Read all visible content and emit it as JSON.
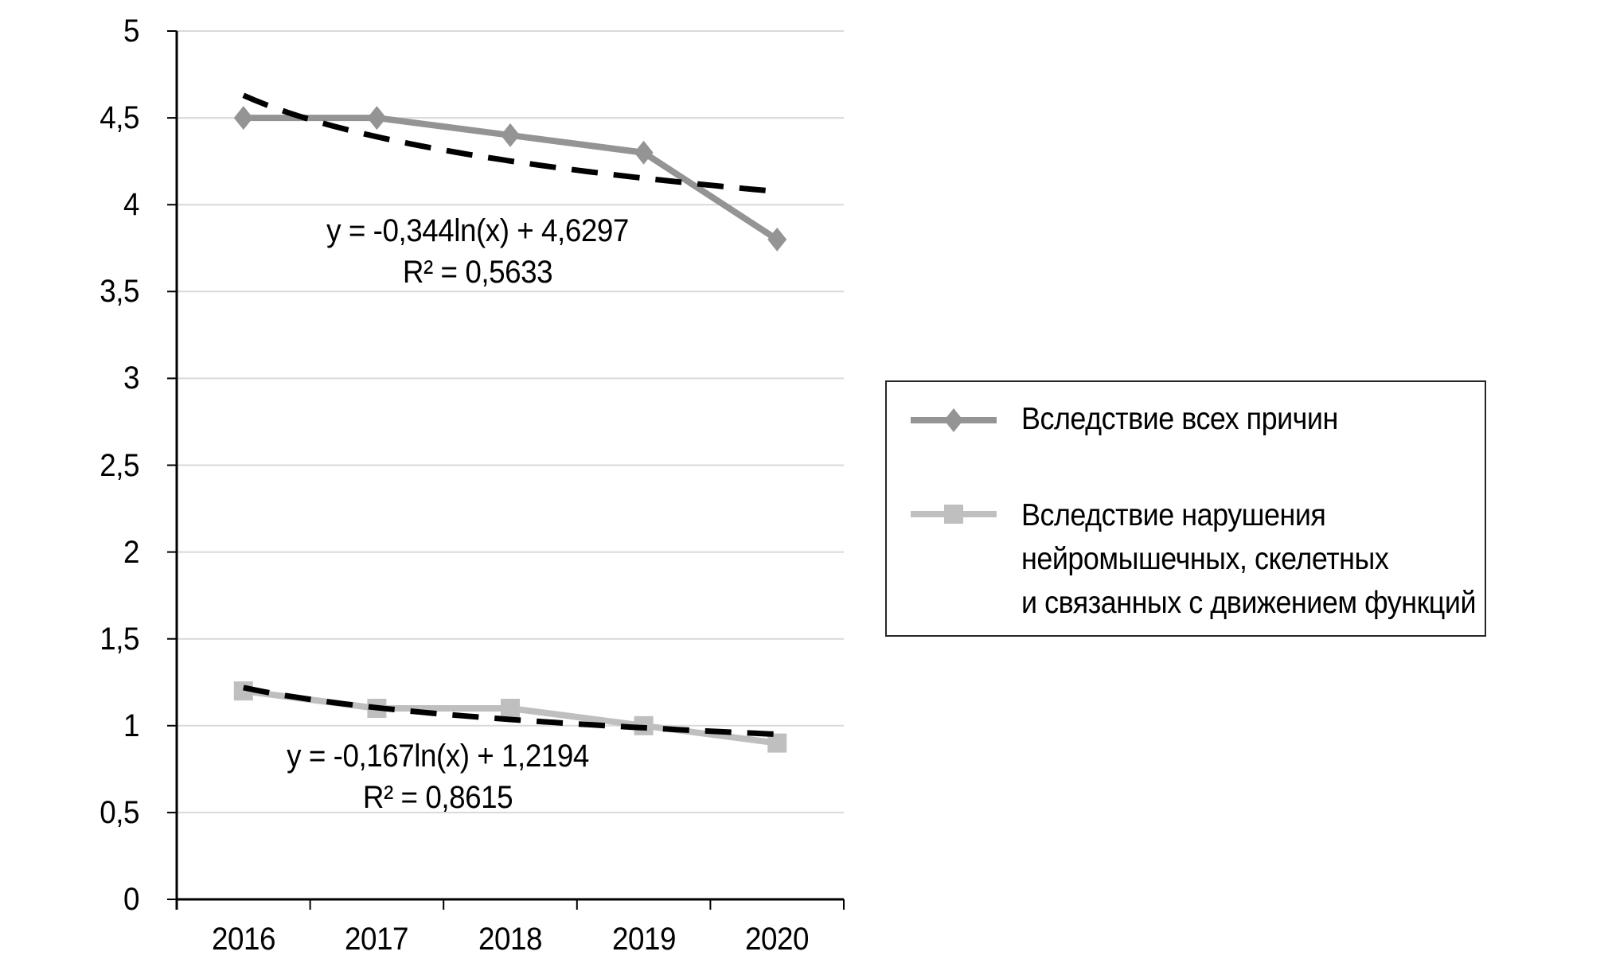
{
  "chart_data": {
    "type": "line",
    "categories": [
      "2016",
      "2017",
      "2018",
      "2019",
      "2020"
    ],
    "series": [
      {
        "name": "Вследствие всех причин",
        "values": [
          4.5,
          4.5,
          4.4,
          4.3,
          3.8
        ],
        "color": "#949494",
        "marker": "diamond"
      },
      {
        "name": "Вследствие нарушения нейромышечных, скелетных и связанных с движением функций",
        "values": [
          1.2,
          1.1,
          1.1,
          1.0,
          0.9
        ],
        "color": "#BFBFBF",
        "marker": "square"
      }
    ],
    "trendlines": [
      {
        "fit": "logarithmic",
        "a": -0.344,
        "b": 4.6297,
        "equation": "y = -0,344ln(x) + 4,6297",
        "r2": "R² = 0,5633",
        "color": "#000000"
      },
      {
        "fit": "logarithmic",
        "a": -0.167,
        "b": 1.2194,
        "equation": "y = -0,167ln(x) + 1,2194",
        "r2": "R² = 0,8615",
        "color": "#000000"
      }
    ],
    "y_axis": {
      "min": 0,
      "max": 5,
      "tick_step": 0.5,
      "tick_labels": [
        "0",
        "0,5",
        "1",
        "1,5",
        "2",
        "2,5",
        "3",
        "3,5",
        "4",
        "4,5",
        "5"
      ]
    },
    "x_axis": {
      "tick_labels": [
        "2016",
        "2017",
        "2018",
        "2019",
        "2020"
      ]
    },
    "grid": true,
    "gridline_color": "#D9D9D9",
    "axis_color": "#000000",
    "legend_position": "right"
  },
  "legend": {
    "item1_label": "Вследствие всех причин",
    "item2_line1": "Вследствие нарушения",
    "item2_line2": "нейромышечных, скелетных",
    "item2_line3": "и связанных с движением функций"
  }
}
